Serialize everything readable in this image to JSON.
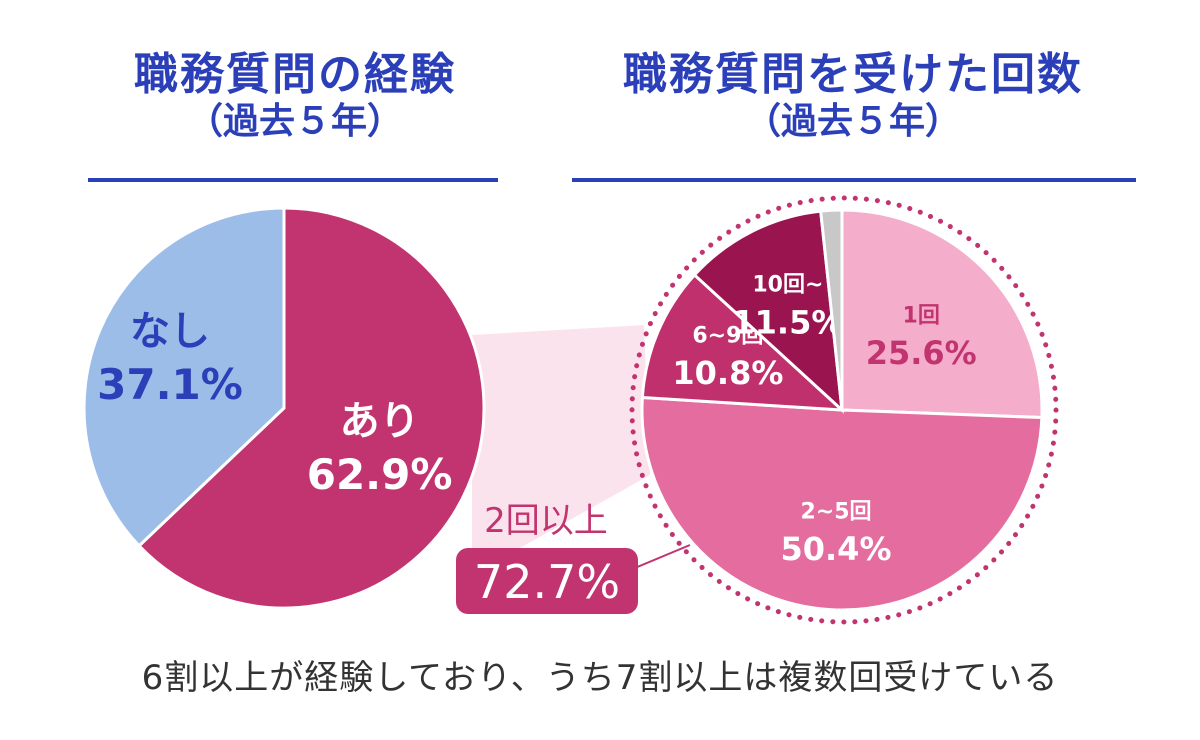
{
  "left_title": {
    "main": "職務質問の経験",
    "sub": "（過去５年）"
  },
  "right_title": {
    "main": "職務質問を受けた回数",
    "sub": "（過去５年）"
  },
  "caption": "6割以上が経験しており、うち7割以上は複数回受けている",
  "callout": {
    "label": "2回以上",
    "value": "72.7%"
  },
  "chart_data": [
    {
      "type": "pie",
      "title": "職務質問の経験（過去５年）",
      "start": "12 o'clock, clockwise",
      "slices": [
        {
          "name": "あり",
          "label": "62.9%",
          "value": 62.9,
          "color": "#c2346f",
          "text_color": "#ffffff"
        },
        {
          "name": "なし",
          "label": "37.1%",
          "value": 37.1,
          "color": "#9dbde9",
          "text_color": "#2b3fb8"
        }
      ]
    },
    {
      "type": "pie",
      "title": "職務質問を受けた回数（過去５年）",
      "start": "12 o'clock, clockwise",
      "slices": [
        {
          "name": "1回",
          "label": "25.6%",
          "value": 25.6,
          "color": "#f4aecb",
          "text_color": "#c2346f"
        },
        {
          "name": "2~5回",
          "label": "50.4%",
          "value": 50.4,
          "color": "#e46c9f",
          "text_color": "#ffffff"
        },
        {
          "name": "6~9回",
          "label": "10.8%",
          "value": 10.8,
          "color": "#c0306c",
          "text_color": "#ffffff"
        },
        {
          "name": "10回~",
          "label": "11.5%",
          "value": 11.5,
          "color": "#9a1450",
          "text_color": "#ffffff"
        },
        {
          "name": "",
          "label": "",
          "value": 1.7,
          "color": "#c8c8c8",
          "text_color": "#ffffff"
        }
      ]
    }
  ]
}
